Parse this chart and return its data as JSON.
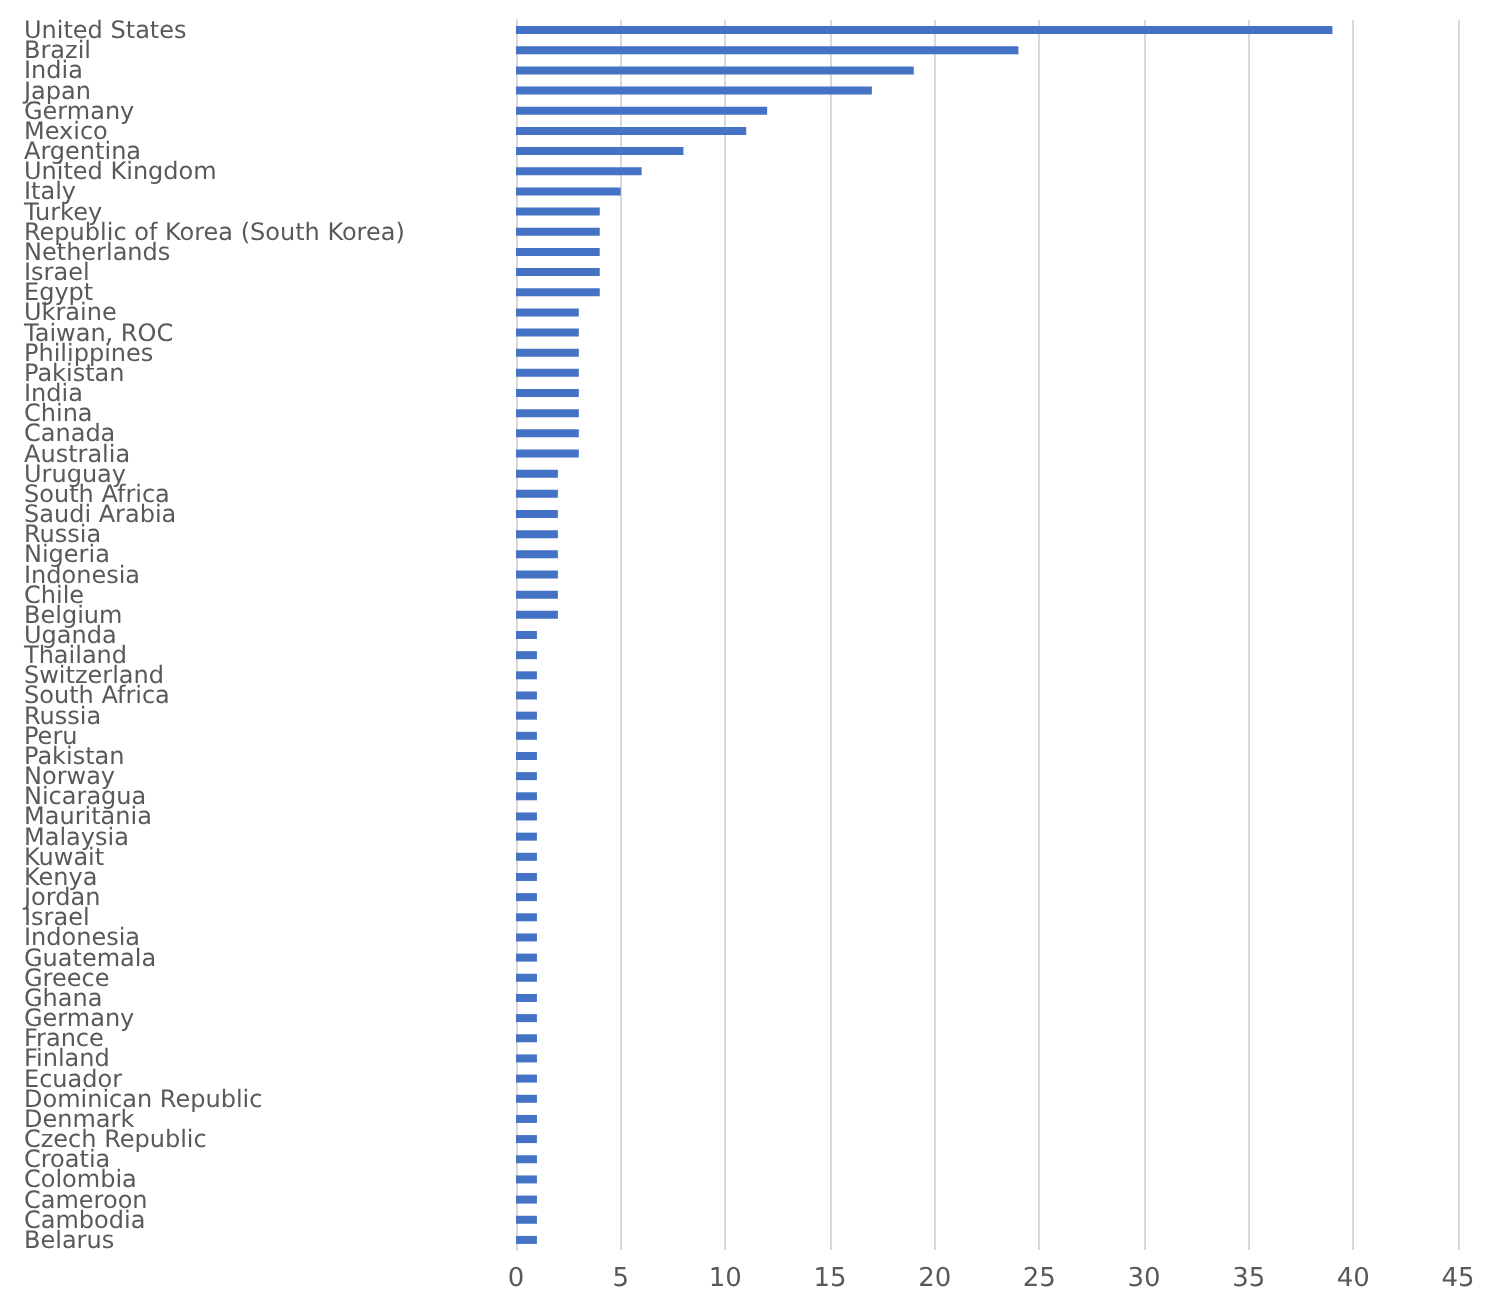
{
  "chart_data": {
    "type": "bar",
    "orientation": "horizontal",
    "categories": [
      "United States",
      "Brazil",
      "India",
      "Japan",
      "Germany",
      "Mexico",
      "Argentina",
      "United Kingdom",
      "Italy",
      "Turkey",
      "Republic of Korea (South Korea)",
      "Netherlands",
      "Israel",
      "Egypt",
      "Ukraine",
      "Taiwan, ROC",
      "Philippines",
      "Pakistan",
      "India",
      "China",
      "Canada",
      "Australia",
      "Uruguay",
      "South Africa",
      "Saudi Arabia",
      "Russia",
      "Nigeria",
      "Indonesia",
      "Chile",
      "Belgium",
      "Uganda",
      "Thailand",
      "Switzerland",
      "South Africa",
      "Russia",
      "Peru",
      "Pakistan",
      "Norway",
      "Nicaragua",
      "Mauritania",
      "Malaysia",
      "Kuwait",
      "Kenya",
      "Jordan",
      "Israel",
      "Indonesia",
      "Guatemala",
      "Greece",
      "Ghana",
      "Germany",
      "France",
      "Finland",
      "Ecuador",
      "Dominican Republic",
      "Denmark",
      "Czech Republic",
      "Croatia",
      "Colombia",
      "Cameroon",
      "Cambodia",
      "Belarus"
    ],
    "values": [
      39,
      24,
      19,
      17,
      12,
      11,
      8,
      6,
      5,
      4,
      4,
      4,
      4,
      4,
      3,
      3,
      3,
      3,
      3,
      3,
      3,
      3,
      2,
      2,
      2,
      2,
      2,
      2,
      2,
      2,
      1,
      1,
      1,
      1,
      1,
      1,
      1,
      1,
      1,
      1,
      1,
      1,
      1,
      1,
      1,
      1,
      1,
      1,
      1,
      1,
      1,
      1,
      1,
      1,
      1,
      1,
      1,
      1,
      1,
      1,
      1
    ],
    "color": "#4472c4",
    "xlim": [
      0,
      45
    ],
    "xticks": [
      0,
      5,
      10,
      15,
      20,
      25,
      30,
      35,
      40,
      45
    ],
    "grid": "x"
  }
}
